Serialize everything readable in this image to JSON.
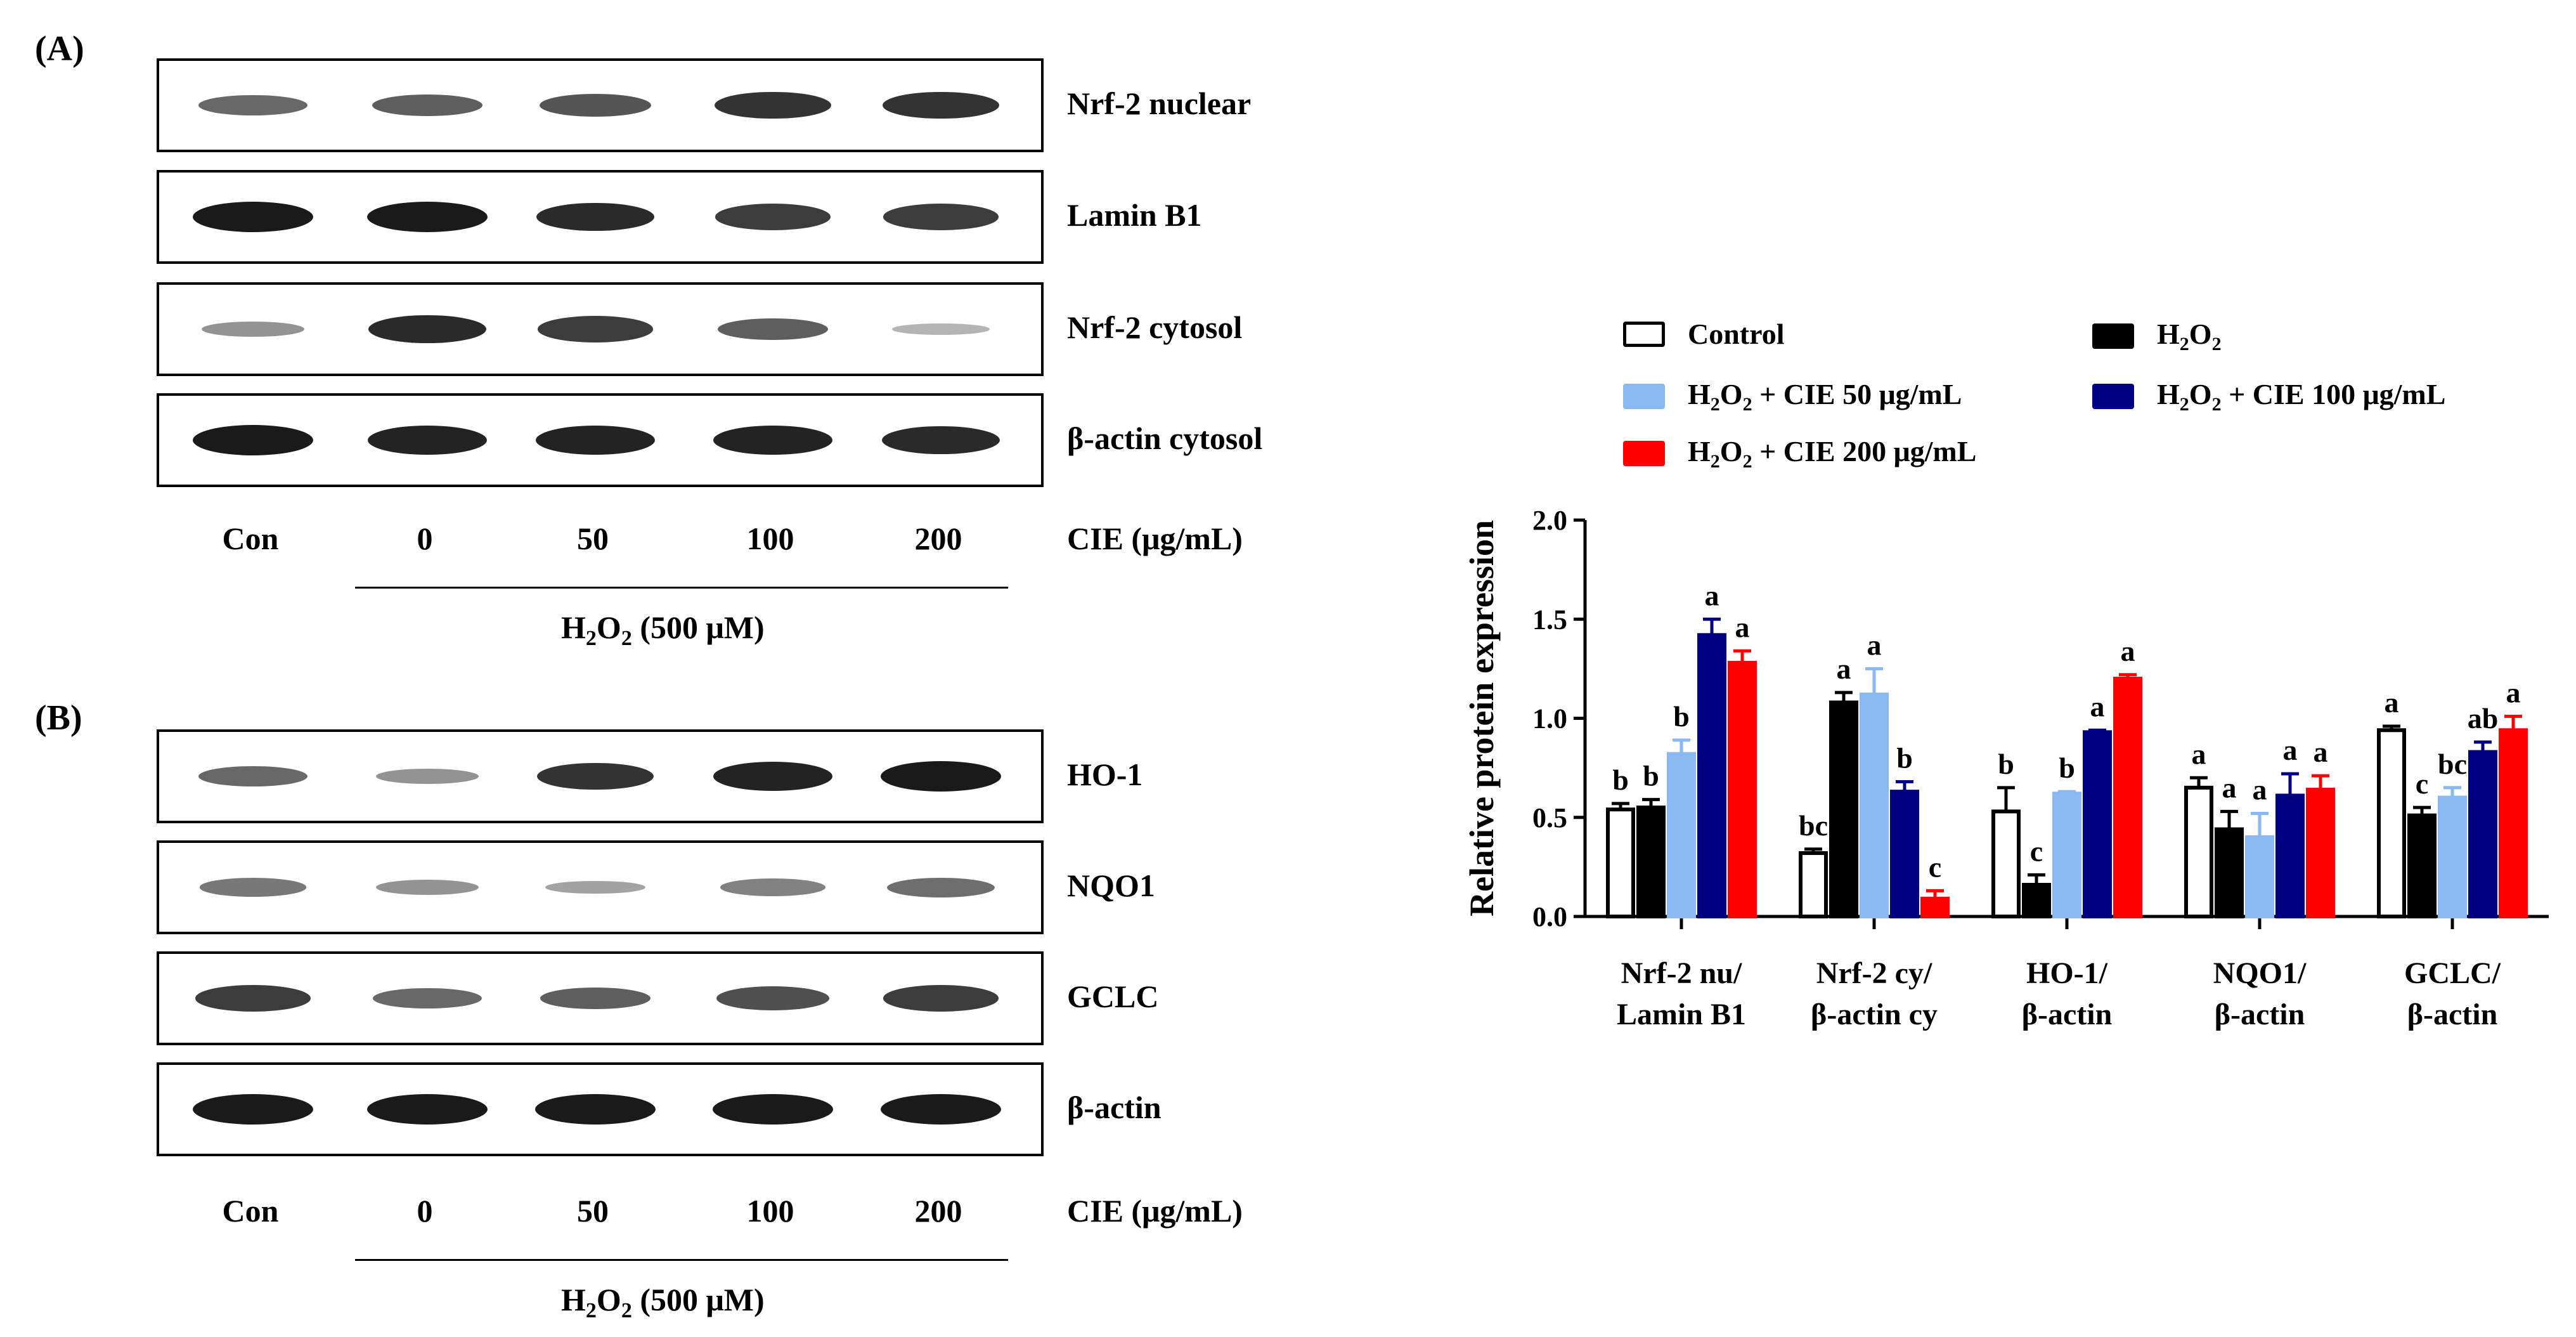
{
  "panel_a": {
    "label": "(A)",
    "blots": [
      {
        "label": "Nrf-2 nuclear",
        "bands": [
          0.55,
          0.6,
          0.65,
          0.85,
          0.85
        ]
      },
      {
        "label": "Lamin B1",
        "bands": [
          1.0,
          1.0,
          0.9,
          0.8,
          0.8
        ]
      },
      {
        "label": "Nrf-2 cytosol",
        "bands": [
          0.3,
          0.9,
          0.8,
          0.6,
          0.1
        ]
      },
      {
        "label": "β-actin cytosol",
        "bands": [
          1.0,
          0.95,
          0.95,
          0.95,
          0.9
        ]
      }
    ],
    "lanes": [
      "Con",
      "0",
      "50",
      "100",
      "200"
    ],
    "dose_label": "CIE (μg/mL)",
    "treatment": {
      "pre": "H",
      "sub": "2",
      "mid": "O",
      "sub2": "2",
      "post": " (500 μM)"
    }
  },
  "panel_b": {
    "label": "(B)",
    "blots": [
      {
        "label": "HO-1",
        "bands": [
          0.55,
          0.3,
          0.85,
          0.95,
          1.0
        ]
      },
      {
        "label": "NQO1",
        "bands": [
          0.45,
          0.3,
          0.2,
          0.4,
          0.5
        ]
      },
      {
        "label": "GCLC",
        "bands": [
          0.8,
          0.55,
          0.6,
          0.7,
          0.8
        ]
      },
      {
        "label": "β-actin",
        "bands": [
          1.0,
          1.0,
          1.0,
          1.0,
          1.0
        ]
      }
    ],
    "lanes": [
      "Con",
      "0",
      "50",
      "100",
      "200"
    ],
    "dose_label": "CIE (μg/mL)",
    "treatment": {
      "pre": "H",
      "sub": "2",
      "mid": "O",
      "sub2": "2",
      "post": " (500 μM)"
    }
  },
  "legend": [
    {
      "pre": "Control",
      "color": "#ffffff",
      "edge": "#000000"
    },
    {
      "pre": "H",
      "sub": "2",
      "mid": "O",
      "sub2": "2",
      "post": "",
      "color": "#000000",
      "edge": "#000000"
    },
    {
      "pre": "H",
      "sub": "2",
      "mid": "O",
      "sub2": "2",
      "post": " + CIE 50 μg/mL",
      "color": "#8ab8f0",
      "edge": "#8ab8f0"
    },
    {
      "pre": "H",
      "sub": "2",
      "mid": "O",
      "sub2": "2",
      "post": " + CIE 100 μg/mL",
      "color": "#000080",
      "edge": "#000080"
    },
    {
      "pre": "H",
      "sub": "2",
      "mid": "O",
      "sub2": "2",
      "post": " + CIE 200 μg/mL",
      "color": "#ff0000",
      "edge": "#ff0000"
    }
  ],
  "chart_data": {
    "type": "bar",
    "ylabel": "Relative protein expression",
    "ylim": [
      0,
      2.0
    ],
    "yticks": [
      "0.0",
      "0.5",
      "1.0",
      "1.5",
      "2.0"
    ],
    "categories": [
      [
        "Nrf-2 nu/",
        "Lamin B1"
      ],
      [
        "Nrf-2 cy/",
        "β-actin cy"
      ],
      [
        "HO-1/",
        "β-actin"
      ],
      [
        "NQO1/",
        "β-actin"
      ],
      [
        "GCLC/",
        "β-actin"
      ]
    ],
    "series_colors": [
      "#ffffff",
      "#000000",
      "#8ab8f0",
      "#000080",
      "#ff0000"
    ],
    "series_edges": [
      "#000000",
      "#000000",
      "#8ab8f0",
      "#000080",
      "#ff0000"
    ],
    "values": [
      [
        0.54,
        0.55,
        0.82,
        1.42,
        1.28
      ],
      [
        0.32,
        1.08,
        1.12,
        0.63,
        0.09
      ],
      [
        0.53,
        0.16,
        0.62,
        0.93,
        1.2
      ],
      [
        0.65,
        0.44,
        0.4,
        0.61,
        0.64
      ],
      [
        0.94,
        0.51,
        0.6,
        0.83,
        0.94
      ]
    ],
    "errors": [
      [
        0.03,
        0.04,
        0.07,
        0.08,
        0.06
      ],
      [
        0.02,
        0.05,
        0.13,
        0.05,
        0.04
      ],
      [
        0.12,
        0.05,
        0.01,
        0.01,
        0.02
      ],
      [
        0.05,
        0.09,
        0.12,
        0.11,
        0.07
      ],
      [
        0.02,
        0.04,
        0.05,
        0.05,
        0.07
      ]
    ],
    "letters": [
      [
        "b",
        "b",
        "b",
        "a",
        "a"
      ],
      [
        "bc",
        "a",
        "a",
        "b",
        "c"
      ],
      [
        "b",
        "c",
        "b",
        "a",
        "a"
      ],
      [
        "a",
        "a",
        "a",
        "a",
        "a"
      ],
      [
        "a",
        "c",
        "bc",
        "ab",
        "a"
      ]
    ]
  }
}
